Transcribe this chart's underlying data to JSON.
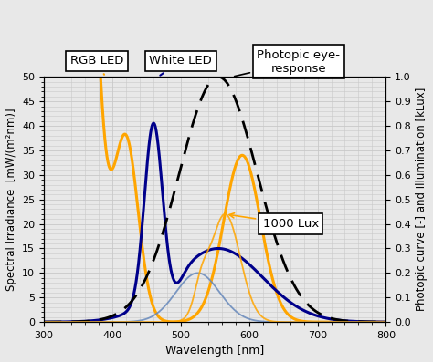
{
  "xlim": [
    300,
    800
  ],
  "ylim_left": [
    0,
    50
  ],
  "ylim_right": [
    0,
    1.0
  ],
  "xlabel": "Wavelength [nm]",
  "ylabel_left": "Spectral Irradiance  [mW/(m²nm)]",
  "ylabel_right": "Photopic curve [-] and Illumination [kLux]",
  "xticks": [
    300,
    400,
    500,
    600,
    700,
    800
  ],
  "yticks_left": [
    0,
    5,
    10,
    15,
    20,
    25,
    30,
    35,
    40,
    45,
    50
  ],
  "yticks_right": [
    0,
    0.1,
    0.2,
    0.3,
    0.4,
    0.5,
    0.6,
    0.7,
    0.8,
    0.9,
    1.0
  ],
  "grid_color": "#c8c8c8",
  "background_color": "#e8e8e8",
  "color_rgb_led": "#FFA500",
  "color_white_led": "#00008B",
  "color_photopic": "#000000",
  "color_blue_thin": "#6688BB",
  "color_orange_thin": "#FFA500",
  "lw_thick": 2.2,
  "lw_thin": 1.3
}
